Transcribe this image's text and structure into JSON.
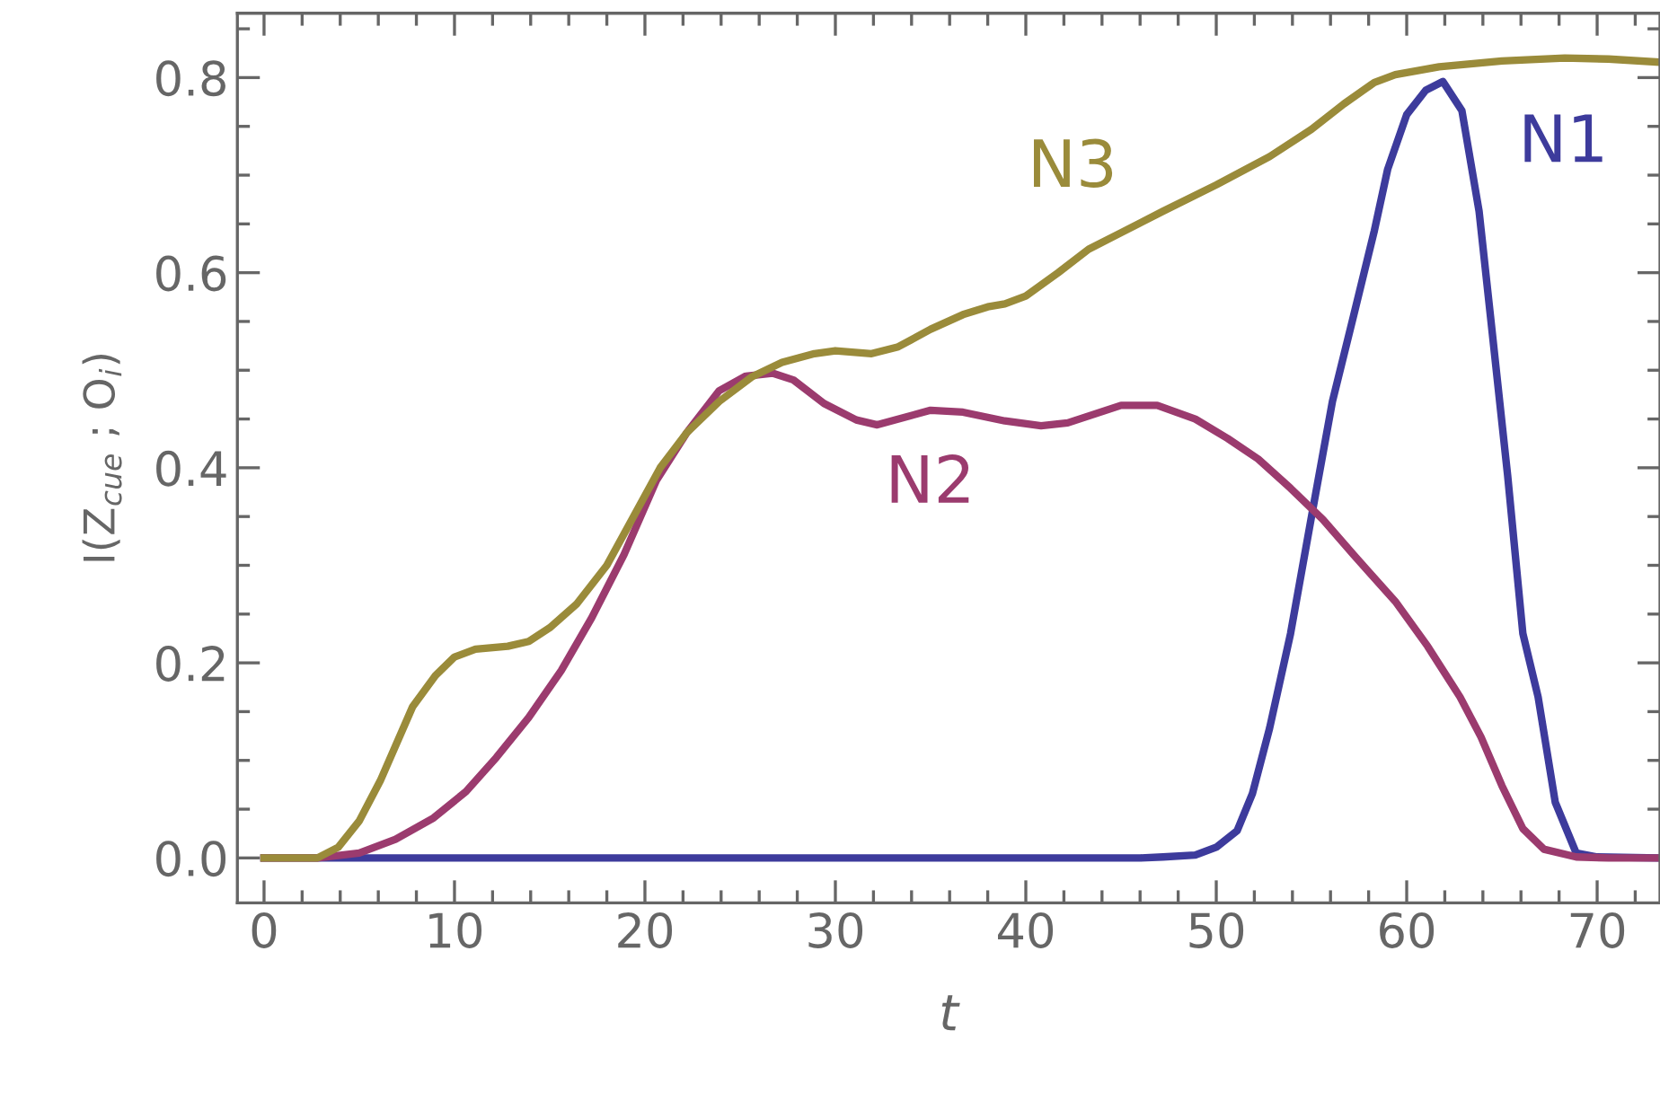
{
  "chart_data": {
    "type": "line",
    "xlabel": "t",
    "ylabel": "I(Z$_{cue}$ ; O$_{i}$)",
    "xlim": [
      -1.4,
      73.3
    ],
    "ylim": [
      -0.046,
      0.866
    ],
    "xticks": [
      0,
      10,
      20,
      30,
      40,
      50,
      60,
      70
    ],
    "yticks": [
      {
        "value": 0,
        "label": "0.0"
      },
      0.2,
      0.4,
      0.6,
      0.8
    ],
    "grid": false,
    "legend": false,
    "marker": "none",
    "line_style": "solid",
    "series": [
      {
        "name": "N1",
        "color": "#3d3b9c",
        "x": [
          0,
          10,
          20,
          30,
          40,
          46,
          47.2,
          48.9,
          50,
          51.1,
          51.9,
          52.8,
          53.9,
          55,
          56.1,
          57.2,
          58.3,
          59,
          60,
          61,
          61.9,
          62.9,
          63.8,
          64.4,
          65.3,
          66.1,
          66.9,
          67.8,
          68.9,
          70,
          73.1
        ],
        "values": [
          0,
          0,
          0,
          0,
          0,
          0,
          0.001,
          0.003,
          0.011,
          0.028,
          0.066,
          0.133,
          0.23,
          0.35,
          0.468,
          0.555,
          0.643,
          0.706,
          0.762,
          0.787,
          0.796,
          0.766,
          0.663,
          0.555,
          0.392,
          0.23,
          0.165,
          0.057,
          0.005,
          0.001,
          0
        ]
      },
      {
        "name": "N2",
        "color": "#9b3b6e",
        "x": [
          0,
          2.8,
          5,
          6.9,
          8.9,
          10.6,
          12.2,
          13.9,
          15.6,
          17.2,
          18.9,
          20.6,
          22.2,
          23.9,
          25.3,
          26.7,
          27.8,
          29.4,
          31.1,
          32.2,
          35,
          36.7,
          38.9,
          40.8,
          42.2,
          45,
          46.9,
          48.9,
          50.6,
          52.2,
          53.9,
          55.6,
          57.2,
          59.4,
          61.1,
          62.8,
          63.9,
          65,
          66.1,
          67.2,
          68.9,
          70.6,
          73.1
        ],
        "values": [
          0,
          0,
          0.005,
          0.019,
          0.041,
          0.068,
          0.103,
          0.144,
          0.192,
          0.246,
          0.311,
          0.387,
          0.436,
          0.479,
          0.494,
          0.497,
          0.49,
          0.466,
          0.449,
          0.444,
          0.459,
          0.457,
          0.448,
          0.443,
          0.446,
          0.464,
          0.464,
          0.45,
          0.43,
          0.409,
          0.379,
          0.347,
          0.311,
          0.263,
          0.217,
          0.165,
          0.124,
          0.074,
          0.03,
          0.009,
          0.001,
          0,
          0
        ]
      },
      {
        "name": "N3",
        "color": "#9a8b3a",
        "x": [
          0,
          2.8,
          3.9,
          5,
          6.1,
          7.8,
          9,
          10,
          11.1,
          12.8,
          13.9,
          15,
          16.4,
          18,
          19.4,
          20.8,
          22.2,
          23.9,
          25.6,
          27.2,
          28.9,
          30,
          31.9,
          33.3,
          35,
          36.7,
          38,
          38.9,
          40,
          41.7,
          43.3,
          45,
          47.2,
          50,
          52.8,
          55,
          56.7,
          58.3,
          59.4,
          61.7,
          65,
          68.3,
          70.6,
          73.1
        ],
        "values": [
          0,
          0,
          0.011,
          0.038,
          0.079,
          0.155,
          0.187,
          0.206,
          0.214,
          0.217,
          0.222,
          0.236,
          0.26,
          0.3,
          0.35,
          0.4,
          0.436,
          0.468,
          0.493,
          0.508,
          0.517,
          0.52,
          0.517,
          0.524,
          0.542,
          0.557,
          0.565,
          0.568,
          0.576,
          0.6,
          0.624,
          0.641,
          0.663,
          0.69,
          0.719,
          0.747,
          0.773,
          0.795,
          0.803,
          0.811,
          0.817,
          0.82,
          0.819,
          0.816
        ]
      }
    ]
  }
}
